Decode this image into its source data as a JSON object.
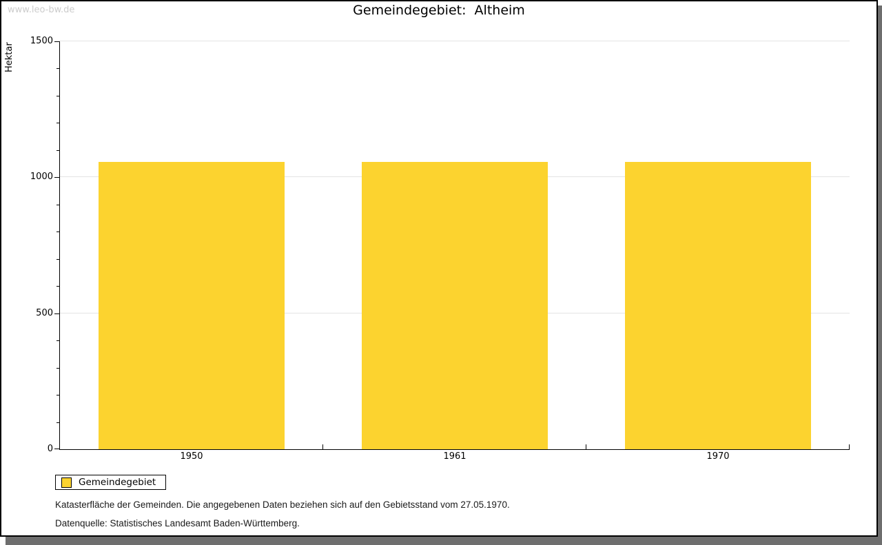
{
  "watermark": "www.leo-bw.de",
  "title": "Gemeindegebiet:  Altheim",
  "chart_data": {
    "type": "bar",
    "title": "Gemeindegebiet: Altheim",
    "categories": [
      "1950",
      "1961",
      "1970"
    ],
    "series": [
      {
        "name": "Gemeindegebiet",
        "values": [
          1056,
          1056,
          1056
        ]
      }
    ],
    "xlabel": "",
    "ylabel": "Hektar",
    "ylim": [
      0,
      1500
    ],
    "y_major_ticks": [
      0,
      500,
      1000,
      1500
    ],
    "y_minor_step": 100,
    "grid": "horizontal-major",
    "legend_position": "bottom-left",
    "bar_color": "#fcd32f"
  },
  "legend": {
    "items": [
      {
        "label": "Gemeindegebiet",
        "color": "#fcd32f"
      }
    ]
  },
  "footer": {
    "note": "Katasterfläche der Gemeinden. Die angegebenen Daten beziehen sich auf den Gebietsstand vom 27.05.1970.",
    "source": "Datenquelle: Statistisches Landesamt Baden-Württemberg."
  },
  "colors": {
    "bar": "#fcd32f",
    "gridline": "#e4e4e4",
    "axis": "#000000",
    "watermark": "#cccccc",
    "shadow": "#6e6e6e"
  }
}
